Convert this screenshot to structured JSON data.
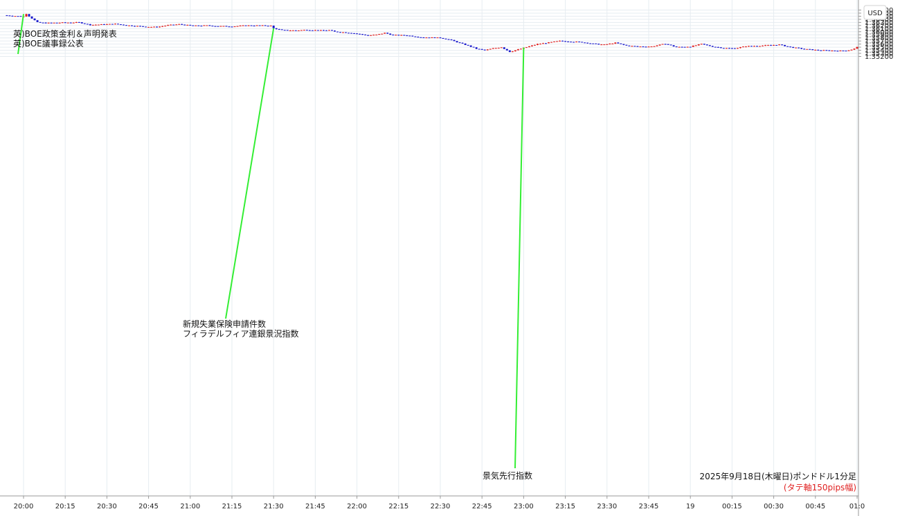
{
  "chart_data": {
    "type": "candlestick",
    "title": "2025年9月18日(木曜日)ポンドドル1分足",
    "subtitle": "(タテ軸150pips幅)",
    "currency": "USD",
    "ylim": [
      1.3517,
      1.3679
    ],
    "y_ticks": [
      "1.36700",
      "1.36600",
      "1.36500",
      "1.36400",
      "1.36300",
      "1.36200",
      "1.36100",
      "1.36000",
      "1.35900",
      "1.35800",
      "1.35700",
      "1.35600",
      "1.35500",
      "1.35400",
      "1.35300",
      "1.35200"
    ],
    "x_ticks": [
      {
        "label": "20:00",
        "minute": 0
      },
      {
        "label": "20:15",
        "minute": 15
      },
      {
        "label": "20:30",
        "minute": 30
      },
      {
        "label": "20:45",
        "minute": 45
      },
      {
        "label": "21:00",
        "minute": 60
      },
      {
        "label": "21:15",
        "minute": 75
      },
      {
        "label": "21:30",
        "minute": 90
      },
      {
        "label": "21:45",
        "minute": 105
      },
      {
        "label": "22:00",
        "minute": 120
      },
      {
        "label": "22:15",
        "minute": 135
      },
      {
        "label": "22:30",
        "minute": 150
      },
      {
        "label": "22:45",
        "minute": 165
      },
      {
        "label": "23:00",
        "minute": 180
      },
      {
        "label": "23:15",
        "minute": 195
      },
      {
        "label": "23:30",
        "minute": 210
      },
      {
        "label": "23:45",
        "minute": 225
      },
      {
        "label": "19",
        "minute": 240
      },
      {
        "label": "00:15",
        "minute": 255
      },
      {
        "label": "00:30",
        "minute": 270
      },
      {
        "label": "00:45",
        "minute": 285
      },
      {
        "label": "01:0",
        "minute": 300
      }
    ],
    "close_path": [
      [
        -7,
        1.3653
      ],
      [
        0,
        1.3649
      ],
      [
        1,
        1.3658
      ],
      [
        2,
        1.365
      ],
      [
        5,
        1.363
      ],
      [
        8,
        1.3628
      ],
      [
        12,
        1.3629
      ],
      [
        20,
        1.363
      ],
      [
        24,
        1.3622
      ],
      [
        33,
        1.3625
      ],
      [
        38,
        1.362
      ],
      [
        44,
        1.3616
      ],
      [
        48,
        1.3615
      ],
      [
        52,
        1.3621
      ],
      [
        56,
        1.3624
      ],
      [
        61,
        1.3619
      ],
      [
        66,
        1.362
      ],
      [
        70,
        1.3618
      ],
      [
        75,
        1.3617
      ],
      [
        80,
        1.362
      ],
      [
        85,
        1.362
      ],
      [
        89,
        1.3619
      ],
      [
        90,
        1.3611
      ],
      [
        93,
        1.3605
      ],
      [
        98,
        1.3604
      ],
      [
        102,
        1.3606
      ],
      [
        107,
        1.3604
      ],
      [
        110,
        1.3605
      ],
      [
        112,
        1.36
      ],
      [
        118,
        1.3596
      ],
      [
        124,
        1.3588
      ],
      [
        127,
        1.359
      ],
      [
        130,
        1.3596
      ],
      [
        133,
        1.3589
      ],
      [
        138,
        1.3588
      ],
      [
        143,
        1.3582
      ],
      [
        150,
        1.358
      ],
      [
        153,
        1.3575
      ],
      [
        160,
        1.3555
      ],
      [
        163,
        1.3545
      ],
      [
        166,
        1.354
      ],
      [
        169,
        1.3546
      ],
      [
        172,
        1.355
      ],
      [
        175,
        1.3535
      ],
      [
        177,
        1.354
      ],
      [
        181,
        1.355
      ],
      [
        185,
        1.356
      ],
      [
        190,
        1.3566
      ],
      [
        193,
        1.357
      ],
      [
        197,
        1.3568
      ],
      [
        201,
        1.3566
      ],
      [
        206,
        1.356
      ],
      [
        209,
        1.3558
      ],
      [
        213,
        1.3564
      ],
      [
        217,
        1.3555
      ],
      [
        221,
        1.3552
      ],
      [
        226,
        1.3552
      ],
      [
        231,
        1.3561
      ],
      [
        235,
        1.355
      ],
      [
        240,
        1.3552
      ],
      [
        244,
        1.356
      ],
      [
        248,
        1.3552
      ],
      [
        252,
        1.3547
      ],
      [
        256,
        1.3546
      ],
      [
        260,
        1.3553
      ],
      [
        266,
        1.3555
      ],
      [
        272,
        1.3558
      ],
      [
        276,
        1.355
      ],
      [
        281,
        1.3544
      ],
      [
        286,
        1.354
      ],
      [
        290,
        1.3539
      ],
      [
        294,
        1.3538
      ],
      [
        297,
        1.354
      ],
      [
        299,
        1.3545
      ],
      [
        300,
        1.355
      ]
    ],
    "annotations": [
      {
        "lines": [
          "英)BOE政策金利＆声明発表",
          "英)BOE議事録公表"
        ],
        "minute": 0,
        "price": 1.3657
      },
      {
        "lines": [
          "新規失業保険申請件数",
          "フィラデルフィア連銀景況指数"
        ],
        "minute": 90,
        "price": 1.3611
      },
      {
        "lines": [
          "景気先行指数"
        ],
        "minute": 180,
        "price": 1.3549
      }
    ],
    "colors": {
      "up": "#e02020",
      "down": "#1a1acc",
      "marker": "#33ee33",
      "grid": "#e6ecf1"
    }
  }
}
